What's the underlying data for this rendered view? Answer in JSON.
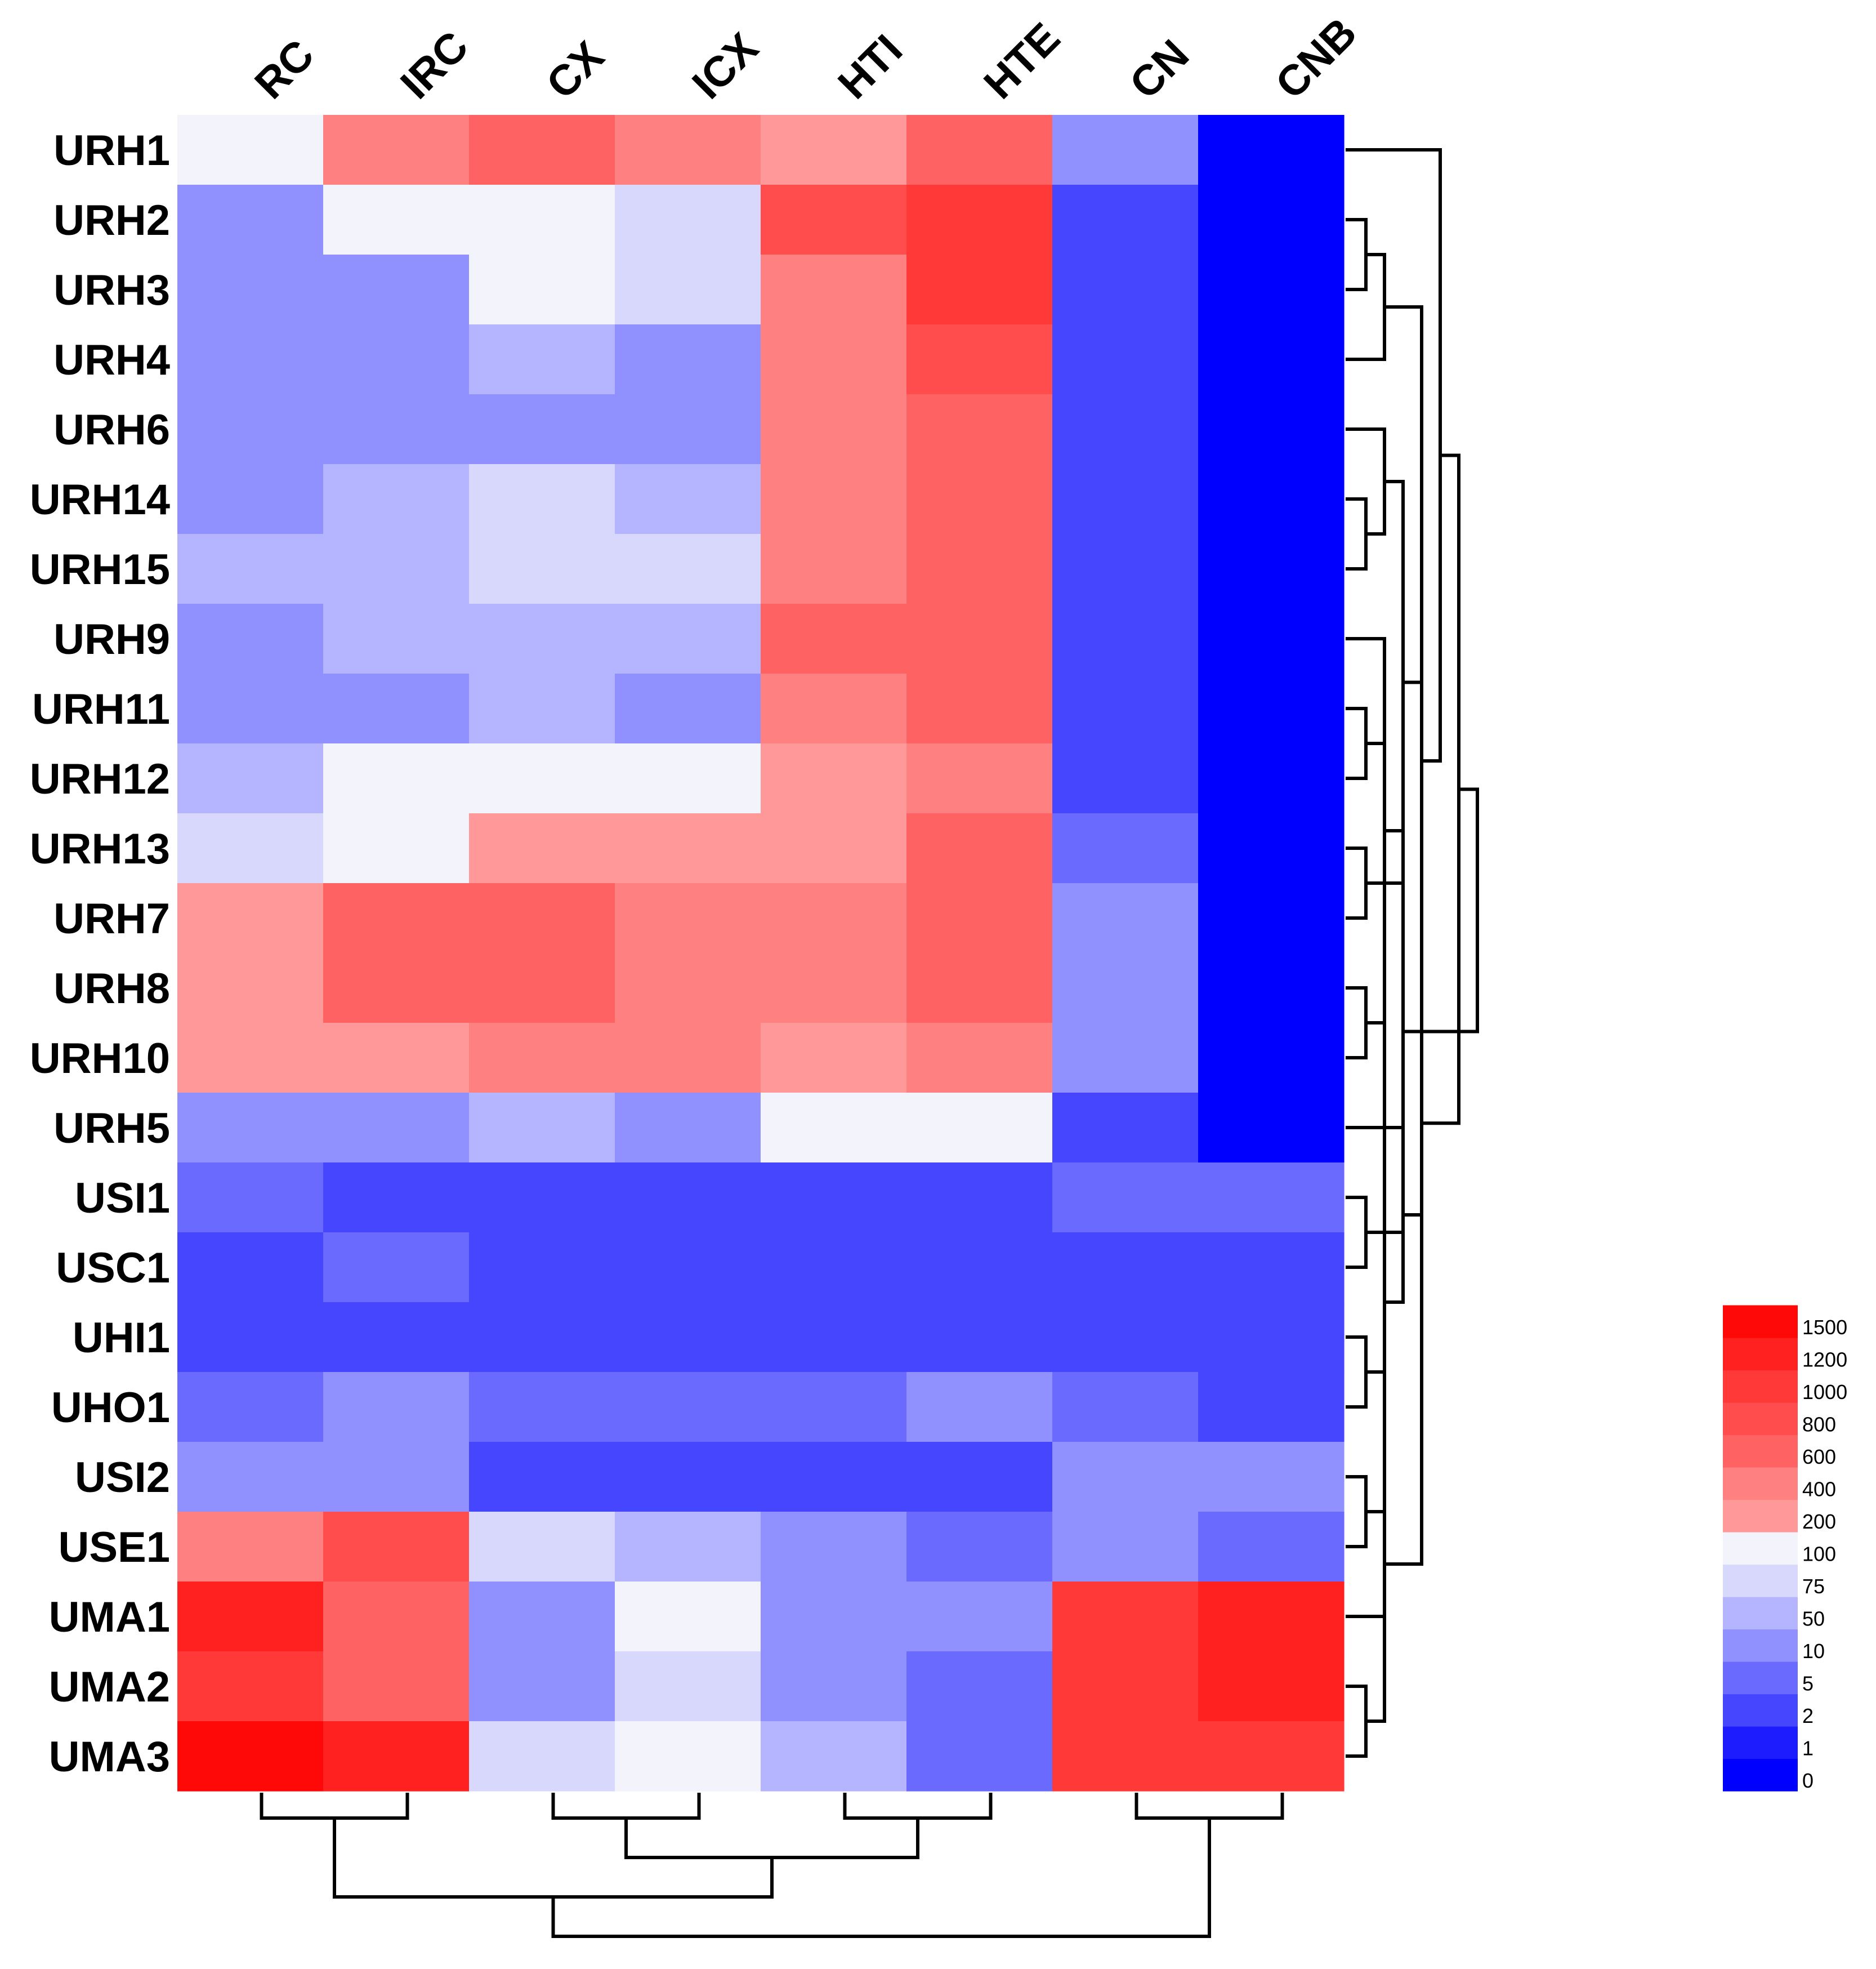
{
  "chart_data": {
    "type": "heatmap",
    "title": "",
    "xlabel": "",
    "ylabel": "",
    "columns": [
      "RC",
      "IRC",
      "CX",
      "ICX",
      "HTI",
      "HTE",
      "CN",
      "CNB"
    ],
    "rows": [
      "URH1",
      "URH2",
      "URH3",
      "URH4",
      "URH6",
      "URH14",
      "URH15",
      "URH9",
      "URH11",
      "URH12",
      "URH13",
      "URH7",
      "URH8",
      "URH10",
      "URH5",
      "USI1",
      "USC1",
      "UHI1",
      "UHO1",
      "USI2",
      "USE1",
      "UMA1",
      "UMA2",
      "UMA3"
    ],
    "values": [
      [
        100,
        400,
        600,
        400,
        200,
        600,
        10,
        0
      ],
      [
        10,
        100,
        100,
        75,
        800,
        1000,
        2,
        0
      ],
      [
        10,
        10,
        100,
        75,
        400,
        1000,
        2,
        0
      ],
      [
        10,
        10,
        50,
        10,
        400,
        800,
        2,
        0
      ],
      [
        10,
        10,
        10,
        10,
        400,
        600,
        2,
        0
      ],
      [
        10,
        50,
        75,
        50,
        400,
        600,
        2,
        0
      ],
      [
        50,
        50,
        75,
        75,
        400,
        600,
        2,
        0
      ],
      [
        10,
        50,
        50,
        50,
        600,
        600,
        2,
        0
      ],
      [
        10,
        10,
        50,
        10,
        400,
        600,
        2,
        0
      ],
      [
        50,
        100,
        100,
        100,
        200,
        400,
        2,
        0
      ],
      [
        75,
        100,
        200,
        200,
        200,
        600,
        5,
        0
      ],
      [
        200,
        600,
        600,
        400,
        400,
        600,
        10,
        0
      ],
      [
        200,
        600,
        600,
        400,
        400,
        600,
        10,
        0
      ],
      [
        200,
        200,
        400,
        400,
        200,
        400,
        10,
        0
      ],
      [
        10,
        10,
        50,
        10,
        100,
        100,
        2,
        0
      ],
      [
        5,
        2,
        2,
        2,
        2,
        2,
        5,
        5
      ],
      [
        2,
        5,
        2,
        2,
        2,
        2,
        2,
        2
      ],
      [
        2,
        2,
        2,
        2,
        2,
        2,
        2,
        2
      ],
      [
        5,
        10,
        5,
        5,
        5,
        10,
        5,
        2
      ],
      [
        10,
        10,
        2,
        2,
        2,
        2,
        10,
        10
      ],
      [
        400,
        800,
        75,
        50,
        10,
        5,
        10,
        5
      ],
      [
        1200,
        600,
        10,
        100,
        10,
        10,
        1000,
        1200
      ],
      [
        1000,
        600,
        10,
        75,
        10,
        5,
        1000,
        1200
      ],
      [
        1500,
        1200,
        75,
        100,
        50,
        5,
        1000,
        1000
      ]
    ],
    "color_scale": {
      "stops": [
        {
          "label": "0",
          "color": "#0000ff"
        },
        {
          "label": "1",
          "color": "#1c1cff"
        },
        {
          "label": "2",
          "color": "#4646ff"
        },
        {
          "label": "5",
          "color": "#6a6aff"
        },
        {
          "label": "10",
          "color": "#9090ff"
        },
        {
          "label": "50",
          "color": "#b4b4ff"
        },
        {
          "label": "75",
          "color": "#d8d8fc"
        },
        {
          "label": "100",
          "color": "#f3f3fb"
        },
        {
          "label": "200",
          "color": "#ff9999"
        },
        {
          "label": "400",
          "color": "#ff8080"
        },
        {
          "label": "600",
          "color": "#ff6262"
        },
        {
          "label": "800",
          "color": "#ff4c4c"
        },
        {
          "label": "1000",
          "color": "#ff3838"
        },
        {
          "label": "1200",
          "color": "#ff2020"
        },
        {
          "label": "1500",
          "color": "#ff0808"
        }
      ]
    },
    "legend_placement": "bottom-right",
    "row_dendrogram": [
      [
        17,
        18
      ],
      [
        15,
        16
      ],
      [
        24,
        25
      ],
      [
        1,
        2
      ],
      [
        5,
        6
      ],
      [
        12,
        13
      ],
      [
        22,
        23
      ],
      [
        4,
        28
      ],
      [
        3,
        27
      ],
      [
        29,
        7
      ],
      [
        8,
        9
      ],
      [
        30,
        34
      ],
      [
        10,
        11
      ],
      [
        19,
        20
      ],
      [
        26,
        14
      ],
      [
        36,
        31
      ],
      [
        37,
        21
      ],
      [
        33,
        35
      ],
      [
        32,
        38
      ],
      [
        0,
        42
      ],
      [
        39,
        40
      ],
      [
        44,
        43
      ],
      [
        45,
        41
      ]
    ],
    "column_dendrogram": [
      [
        2,
        3
      ],
      [
        4,
        5
      ],
      [
        6,
        7
      ],
      [
        0,
        1
      ],
      [
        8,
        9
      ],
      [
        11,
        12
      ],
      [
        13,
        10
      ]
    ]
  }
}
